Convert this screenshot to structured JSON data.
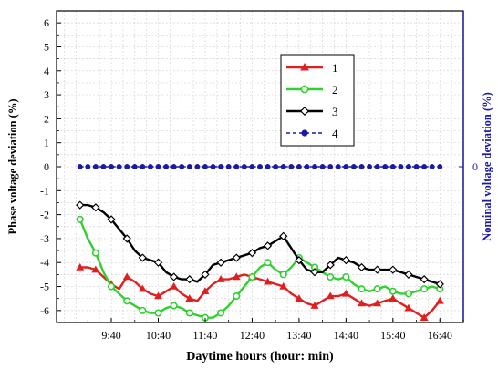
{
  "chart_data": {
    "type": "line",
    "xlabel": "Daytime hours (hour: min)",
    "ylabel": "Phase voltage deviation (%)",
    "y2label": "Nominal voltage deviation (%)",
    "xlim_minutes": [
      510,
      1030
    ],
    "ylim": [
      -6.5,
      6.5
    ],
    "x_ticks": [
      {
        "label": "9:40",
        "minutes": 580
      },
      {
        "label": "10:40",
        "minutes": 640
      },
      {
        "label": "11:40",
        "minutes": 700
      },
      {
        "label": "12:40",
        "minutes": 760
      },
      {
        "label": "13:40",
        "minutes": 820
      },
      {
        "label": "14:40",
        "minutes": 880
      },
      {
        "label": "15:40",
        "minutes": 940
      },
      {
        "label": "16:40",
        "minutes": 1000
      }
    ],
    "y_ticks": [
      6,
      5,
      4,
      3,
      2,
      1,
      0,
      -1,
      -2,
      -3,
      -4,
      -5,
      -6
    ],
    "y2_ticks": [
      {
        "label": "0",
        "value": 0
      }
    ],
    "grid": true,
    "legend_position": "top-center",
    "series": [
      {
        "name": "1",
        "color": "#e02020",
        "marker": "triangle",
        "x": [
          540,
          550,
          560,
          570,
          580,
          590,
          600,
          610,
          620,
          630,
          640,
          650,
          660,
          670,
          680,
          690,
          700,
          710,
          720,
          730,
          740,
          750,
          760,
          770,
          780,
          790,
          800,
          810,
          820,
          830,
          840,
          850,
          860,
          870,
          880,
          890,
          900,
          910,
          920,
          930,
          940,
          950,
          960,
          970,
          980,
          990,
          1000
        ],
        "y": [
          -4.2,
          -4.2,
          -4.3,
          -4.6,
          -4.9,
          -5.1,
          -4.6,
          -4.8,
          -5.1,
          -5.3,
          -5.4,
          -5.2,
          -5.0,
          -5.3,
          -5.5,
          -5.6,
          -5.2,
          -4.9,
          -4.7,
          -4.7,
          -4.6,
          -4.5,
          -4.6,
          -4.7,
          -4.8,
          -4.9,
          -5.0,
          -5.3,
          -5.5,
          -5.7,
          -5.8,
          -5.6,
          -5.4,
          -5.4,
          -5.3,
          -5.5,
          -5.7,
          -5.8,
          -5.7,
          -5.6,
          -5.5,
          -5.7,
          -5.9,
          -6.1,
          -6.3,
          -6.0,
          -5.6
        ]
      },
      {
        "name": "2",
        "color": "#30d030",
        "marker": "circle",
        "x": [
          540,
          550,
          560,
          570,
          580,
          590,
          600,
          610,
          620,
          630,
          640,
          650,
          660,
          670,
          680,
          690,
          700,
          710,
          720,
          730,
          740,
          750,
          760,
          770,
          780,
          790,
          800,
          810,
          820,
          830,
          840,
          850,
          860,
          870,
          880,
          890,
          900,
          910,
          920,
          930,
          940,
          950,
          960,
          970,
          980,
          990,
          1000
        ],
        "y": [
          -2.2,
          -3.0,
          -3.6,
          -4.4,
          -5.0,
          -5.3,
          -5.6,
          -5.8,
          -6.0,
          -6.1,
          -6.1,
          -5.9,
          -5.8,
          -5.9,
          -6.1,
          -6.2,
          -6.3,
          -6.3,
          -6.1,
          -5.8,
          -5.4,
          -5.0,
          -4.6,
          -4.2,
          -4.0,
          -4.3,
          -4.5,
          -4.2,
          -3.8,
          -4.0,
          -4.2,
          -4.4,
          -4.6,
          -4.7,
          -4.6,
          -4.9,
          -5.1,
          -5.2,
          -5.1,
          -5.0,
          -5.2,
          -5.3,
          -5.3,
          -5.2,
          -5.1,
          -5.0,
          -5.1
        ]
      },
      {
        "name": "3",
        "color": "#000000",
        "marker": "diamond",
        "x": [
          540,
          550,
          560,
          570,
          580,
          590,
          600,
          610,
          620,
          630,
          640,
          650,
          660,
          670,
          680,
          690,
          700,
          710,
          720,
          730,
          740,
          750,
          760,
          770,
          780,
          790,
          800,
          810,
          820,
          830,
          840,
          850,
          860,
          870,
          880,
          890,
          900,
          910,
          920,
          930,
          940,
          950,
          960,
          970,
          980,
          990,
          1000
        ],
        "y": [
          -1.6,
          -1.6,
          -1.7,
          -1.9,
          -2.2,
          -2.6,
          -3.0,
          -3.5,
          -3.8,
          -3.9,
          -4.0,
          -4.4,
          -4.6,
          -4.7,
          -4.7,
          -4.8,
          -4.5,
          -4.1,
          -4.0,
          -3.9,
          -3.8,
          -3.7,
          -3.6,
          -3.4,
          -3.3,
          -3.1,
          -2.9,
          -3.4,
          -3.9,
          -4.3,
          -4.4,
          -4.4,
          -4.1,
          -3.8,
          -3.9,
          -4.0,
          -4.2,
          -4.3,
          -4.3,
          -4.3,
          -4.3,
          -4.4,
          -4.5,
          -4.6,
          -4.7,
          -4.8,
          -4.9
        ]
      },
      {
        "name": "4",
        "color": "#1a1aa8",
        "marker": "dot",
        "x": [
          540,
          550,
          560,
          570,
          580,
          590,
          600,
          610,
          620,
          630,
          640,
          650,
          660,
          670,
          680,
          690,
          700,
          710,
          720,
          730,
          740,
          750,
          760,
          770,
          780,
          790,
          800,
          810,
          820,
          830,
          840,
          850,
          860,
          870,
          880,
          890,
          900,
          910,
          920,
          930,
          940,
          950,
          960,
          970,
          980,
          990,
          1000
        ],
        "y": [
          0,
          0,
          0,
          0,
          0,
          0,
          0,
          0,
          0,
          0,
          0,
          0,
          0,
          0,
          0,
          0,
          0,
          0,
          0,
          0,
          0,
          0,
          0,
          0,
          0,
          0,
          0,
          0,
          0,
          0,
          0,
          0,
          0,
          0,
          0,
          0,
          0,
          0,
          0,
          0,
          0,
          0,
          0,
          0,
          0,
          0,
          0
        ]
      }
    ]
  }
}
